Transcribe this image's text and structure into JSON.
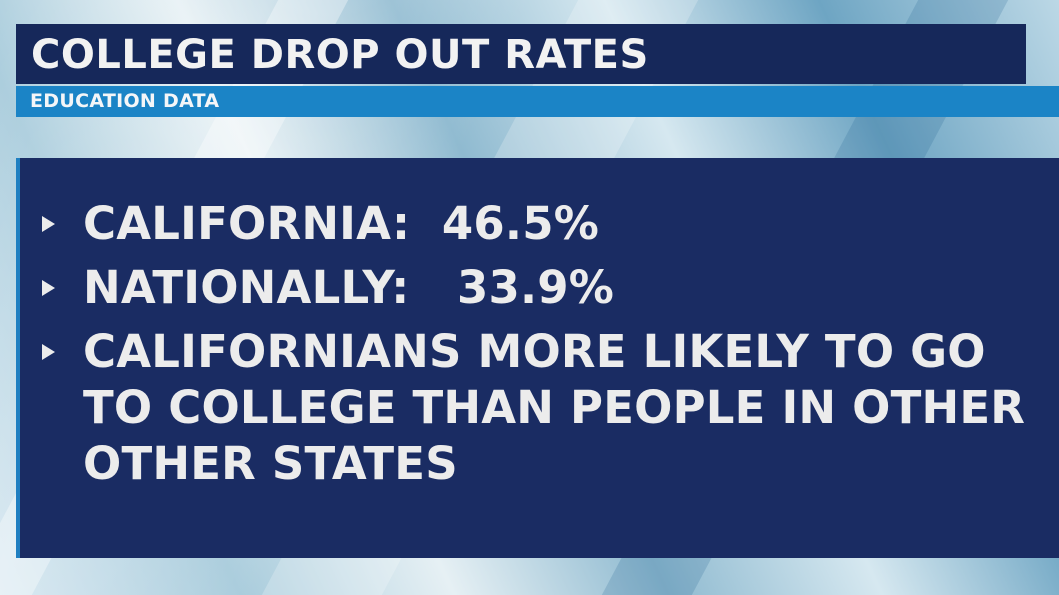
{
  "header": {
    "title": "COLLEGE DROP OUT RATES",
    "subtitle": "EDUCATION DATA"
  },
  "colors": {
    "title_bar": "#16285a",
    "subtitle_bar": "#1b84c6",
    "panel": "#1a2c63",
    "text": "#ececec"
  },
  "bullets": [
    {
      "icon": "triangle-bullet-icon",
      "text": "CALIFORNIA:  46.5%"
    },
    {
      "icon": "triangle-bullet-icon",
      "text": "NATIONALLY:   33.9%"
    },
    {
      "icon": "triangle-bullet-icon",
      "text": "CALIFORNIANS MORE LIKELY TO GO\nTO COLLEGE THAN PEOPLE IN OTHER\nOTHER STATES"
    }
  ]
}
